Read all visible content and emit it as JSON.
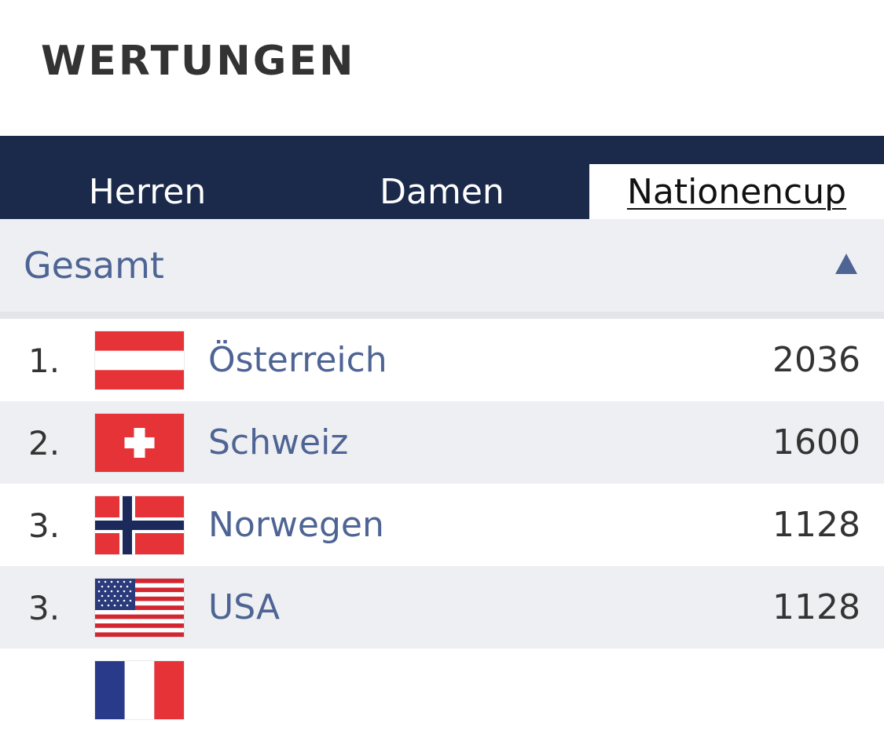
{
  "page": {
    "title": "WERTUNGEN"
  },
  "tabs": [
    {
      "label": "Herren",
      "active": false
    },
    {
      "label": "Damen",
      "active": false
    },
    {
      "label": "Nationencup",
      "active": true
    }
  ],
  "group": {
    "label": "Gesamt",
    "icon": "triangle-up-icon",
    "expanded": true
  },
  "rows": [
    {
      "rank": "1.",
      "country": "Österreich",
      "points": "2036",
      "flag": "austria-flag-icon"
    },
    {
      "rank": "2.",
      "country": "Schweiz",
      "points": "1600",
      "flag": "switzerland-flag-icon"
    },
    {
      "rank": "3.",
      "country": "Norwegen",
      "points": "1128",
      "flag": "norway-flag-icon"
    },
    {
      "rank": "3.",
      "country": "USA",
      "points": "1128",
      "flag": "usa-flag-icon"
    },
    {
      "rank": "",
      "country": "",
      "points": "",
      "flag": "france-flag-icon"
    }
  ],
  "colors": {
    "navy": "#1b2a4b",
    "link_blue": "#4e6494",
    "row_alt": "#eeeff2",
    "text_dark": "#333333"
  }
}
